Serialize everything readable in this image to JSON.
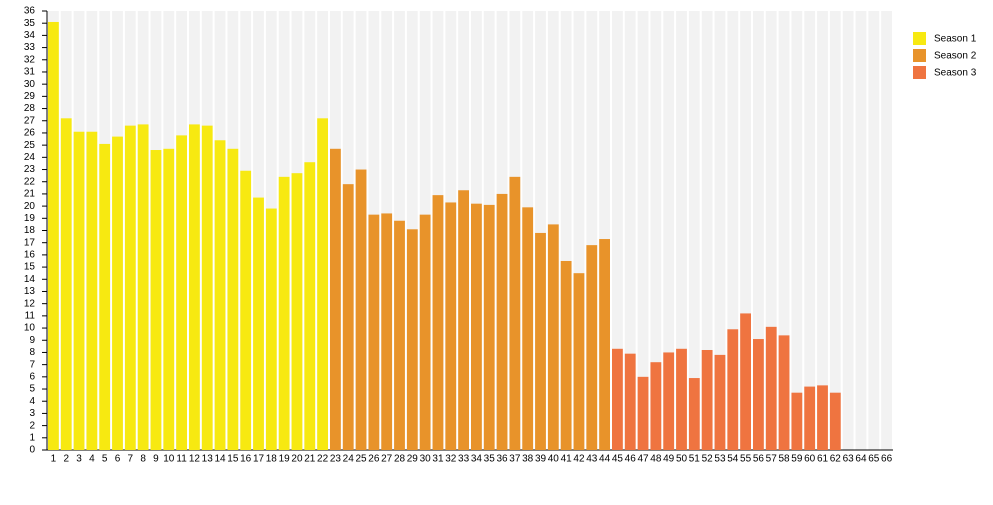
{
  "chart_data": {
    "type": "bar",
    "categories": [
      "1",
      "2",
      "3",
      "4",
      "5",
      "6",
      "7",
      "8",
      "9",
      "10",
      "11",
      "12",
      "13",
      "14",
      "15",
      "16",
      "17",
      "18",
      "19",
      "20",
      "21",
      "22",
      "23",
      "24",
      "25",
      "26",
      "27",
      "28",
      "29",
      "30",
      "31",
      "32",
      "33",
      "34",
      "35",
      "36",
      "37",
      "38",
      "39",
      "40",
      "41",
      "42",
      "43",
      "44",
      "45",
      "46",
      "47",
      "48",
      "49",
      "50",
      "51",
      "52",
      "53",
      "54",
      "55",
      "56",
      "57",
      "58",
      "59",
      "60",
      "61",
      "62",
      "63",
      "64",
      "65",
      "66"
    ],
    "series": [
      {
        "name": "Season 1",
        "color": "#f7e911",
        "values": [
          35.1,
          27.2,
          26.1,
          26.1,
          25.1,
          25.7,
          26.6,
          26.7,
          24.6,
          24.7,
          25.8,
          26.7,
          26.6,
          25.4,
          24.7,
          22.9,
          20.7,
          19.8,
          22.4,
          22.7,
          23.6,
          27.2,
          null,
          null,
          null,
          null,
          null,
          null,
          null,
          null,
          null,
          null,
          null,
          null,
          null,
          null,
          null,
          null,
          null,
          null,
          null,
          null,
          null,
          null,
          null,
          null,
          null,
          null,
          null,
          null,
          null,
          null,
          null,
          null,
          null,
          null,
          null,
          null,
          null,
          null,
          null,
          null,
          null,
          null,
          null,
          null
        ]
      },
      {
        "name": "Season 2",
        "color": "#e8932a",
        "values": [
          null,
          null,
          null,
          null,
          null,
          null,
          null,
          null,
          null,
          null,
          null,
          null,
          null,
          null,
          null,
          null,
          null,
          null,
          null,
          null,
          null,
          null,
          24.7,
          21.8,
          23.0,
          19.3,
          19.4,
          18.8,
          18.1,
          19.3,
          20.9,
          20.3,
          21.3,
          20.2,
          20.1,
          21.0,
          22.4,
          19.9,
          17.8,
          18.5,
          15.5,
          14.5,
          16.8,
          17.3,
          null,
          null,
          null,
          null,
          null,
          null,
          null,
          null,
          null,
          null,
          null,
          null,
          null,
          null,
          null,
          null,
          null,
          null,
          null,
          null,
          null,
          null
        ]
      },
      {
        "name": "Season 3",
        "color": "#ef7440",
        "values": [
          null,
          null,
          null,
          null,
          null,
          null,
          null,
          null,
          null,
          null,
          null,
          null,
          null,
          null,
          null,
          null,
          null,
          null,
          null,
          null,
          null,
          null,
          null,
          null,
          null,
          null,
          null,
          null,
          null,
          null,
          null,
          null,
          null,
          null,
          null,
          null,
          null,
          null,
          null,
          null,
          null,
          null,
          null,
          null,
          8.3,
          7.9,
          6.0,
          7.2,
          8.0,
          8.3,
          5.9,
          8.2,
          7.8,
          9.9,
          11.2,
          9.1,
          10.1,
          9.4,
          4.7,
          5.2,
          5.3,
          4.7,
          null,
          null,
          null,
          null
        ]
      }
    ],
    "ylim": [
      0,
      36
    ],
    "yticks": [
      0,
      1,
      2,
      3,
      4,
      5,
      6,
      7,
      8,
      9,
      10,
      11,
      12,
      13,
      14,
      15,
      16,
      17,
      18,
      19,
      20,
      21,
      22,
      23,
      24,
      25,
      26,
      27,
      28,
      29,
      30,
      31,
      32,
      33,
      34,
      35,
      36
    ],
    "legend": "top-right"
  }
}
